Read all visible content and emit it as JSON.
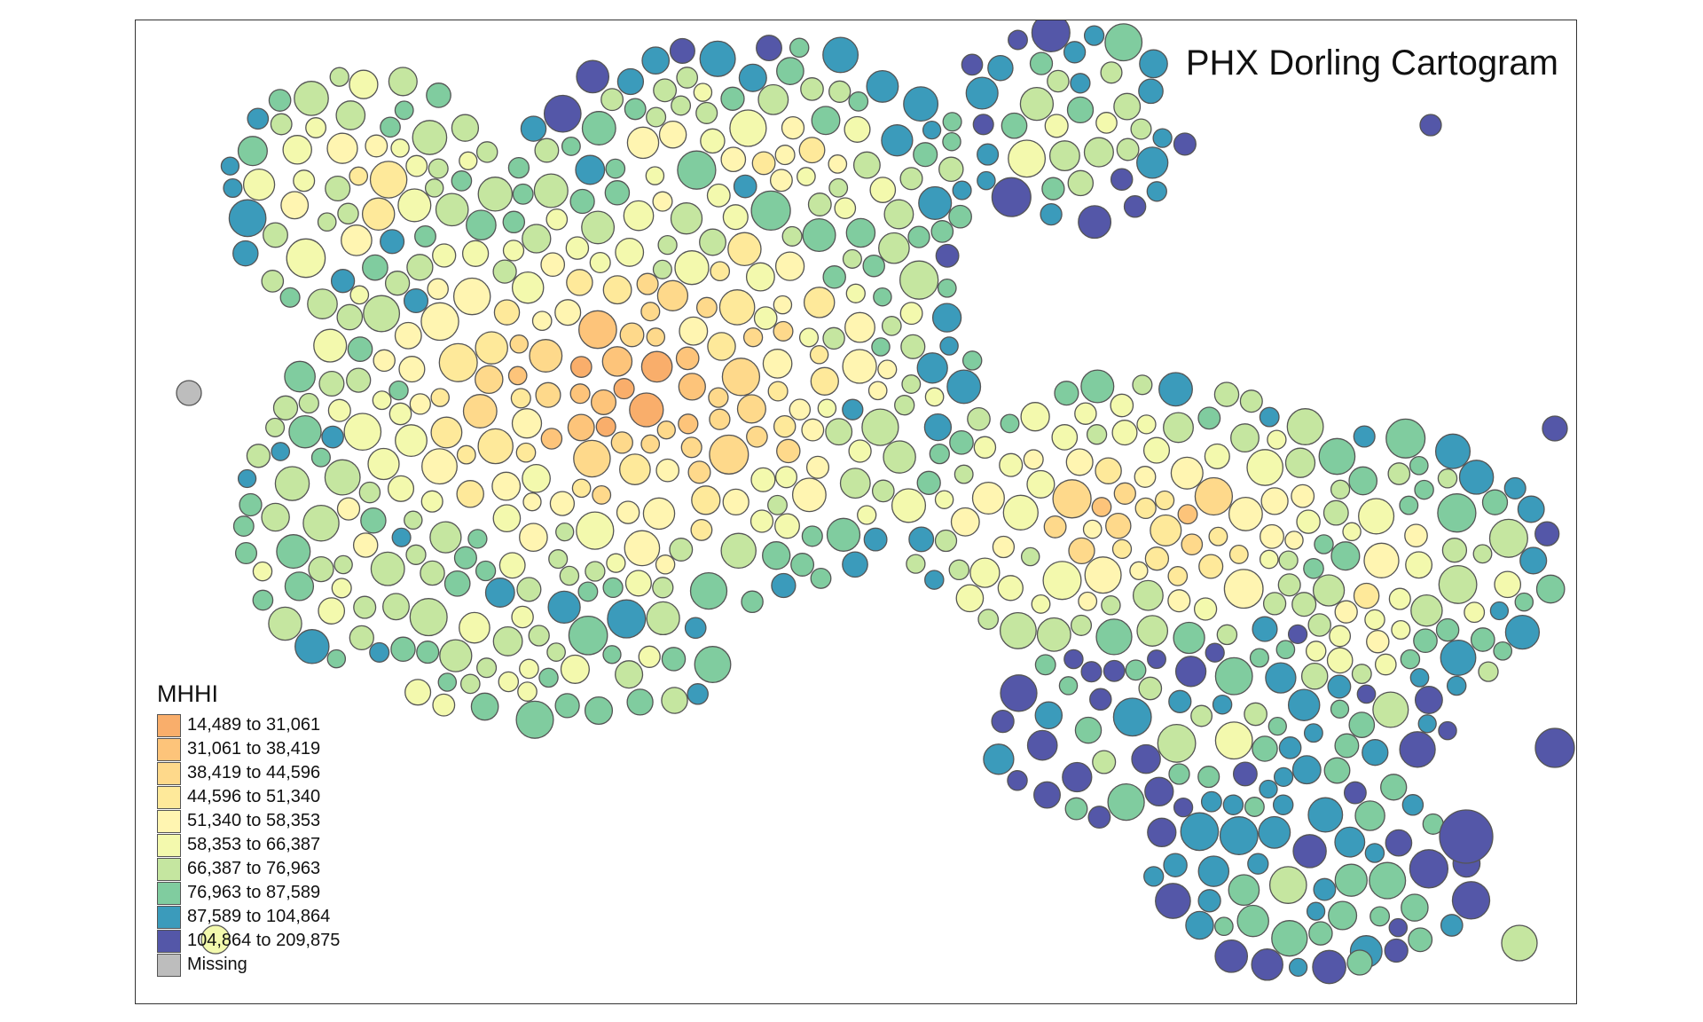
{
  "map": {
    "title": "PHX Dorling Cartogram",
    "legend": {
      "title": "MHHI",
      "classes": [
        {
          "label": "14,489 to 31,061",
          "color": "#f9ae6b"
        },
        {
          "label": "31,061 to 38,419",
          "color": "#fdc47a"
        },
        {
          "label": "38,419 to 44,596",
          "color": "#fed98b"
        },
        {
          "label": "44,596 to 51,340",
          "color": "#fee99a"
        },
        {
          "label": "51,340 to 58,353",
          "color": "#fff5b1"
        },
        {
          "label": "58,353 to 66,387",
          "color": "#f3f9ad"
        },
        {
          "label": "66,387 to 76,963",
          "color": "#c5e6a0"
        },
        {
          "label": "76,963 to 87,589",
          "color": "#80cc9f"
        },
        {
          "label": "87,589 to 104,864",
          "color": "#3b9bbb"
        },
        {
          "label": "104,864 to 209,875",
          "color": "#5457a8"
        },
        {
          "label": "Missing",
          "color": "#bdbdbd"
        }
      ]
    }
  }
}
